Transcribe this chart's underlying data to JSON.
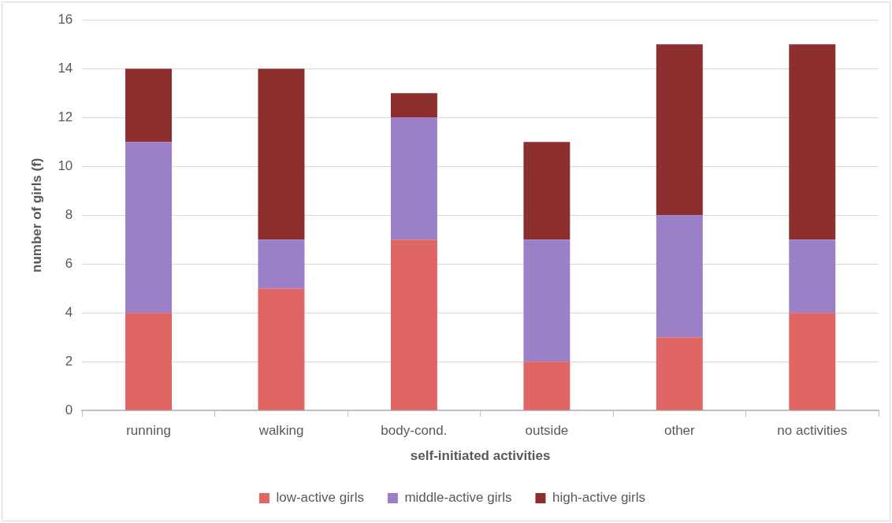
{
  "chart_data": {
    "type": "bar",
    "stacked": true,
    "xlabel": "self-initiated activities",
    "ylabel": "number of girls (f)",
    "categories": [
      "running",
      "walking",
      "body-cond.",
      "outside",
      "other",
      "no activities"
    ],
    "series": [
      {
        "name": "low-active girls",
        "color": "#e06666",
        "values": [
          4,
          5,
          7,
          2,
          3,
          4
        ]
      },
      {
        "name": "middle-active girls",
        "color": "#9b80c8",
        "values": [
          7,
          2,
          5,
          5,
          5,
          3
        ]
      },
      {
        "name": "high-active girls",
        "color": "#8e2f2f",
        "values": [
          3,
          7,
          1,
          4,
          7,
          8
        ]
      }
    ],
    "ylim": [
      0,
      16
    ],
    "yticks": [
      0,
      2,
      4,
      6,
      8,
      10,
      12,
      14,
      16
    ],
    "grid": "y",
    "legend": "bottom"
  }
}
